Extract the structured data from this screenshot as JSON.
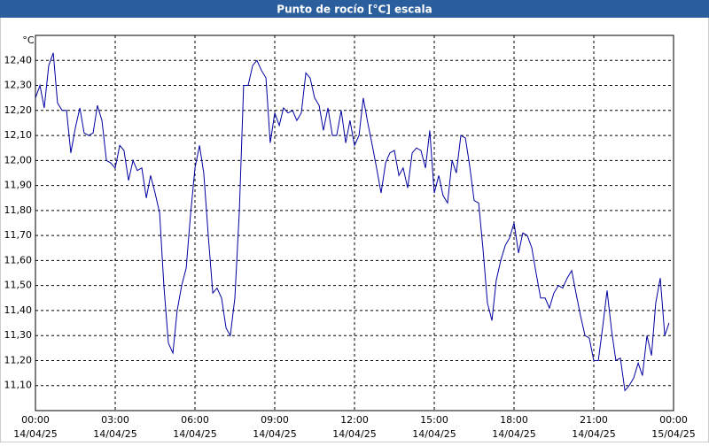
{
  "chart_data": {
    "type": "line",
    "title": "Punto de rocío [°C] escala",
    "y_unit": "°C",
    "x": [
      0,
      0.17,
      0.33,
      0.5,
      0.67,
      0.83,
      1,
      1.17,
      1.33,
      1.5,
      1.67,
      1.83,
      2,
      2.17,
      2.33,
      2.5,
      2.67,
      2.83,
      3,
      3.17,
      3.33,
      3.5,
      3.67,
      3.83,
      4,
      4.17,
      4.33,
      4.5,
      4.67,
      4.83,
      5,
      5.17,
      5.33,
      5.5,
      5.67,
      5.83,
      6,
      6.17,
      6.33,
      6.5,
      6.67,
      6.83,
      7,
      7.17,
      7.33,
      7.5,
      7.67,
      7.83,
      8,
      8.17,
      8.33,
      8.5,
      8.67,
      8.83,
      9,
      9.17,
      9.33,
      9.5,
      9.67,
      9.83,
      10,
      10.17,
      10.33,
      10.5,
      10.67,
      10.83,
      11,
      11.17,
      11.33,
      11.5,
      11.67,
      11.83,
      12,
      12.17,
      12.33,
      12.5,
      12.67,
      12.83,
      13,
      13.17,
      13.33,
      13.5,
      13.67,
      13.83,
      14,
      14.17,
      14.33,
      14.5,
      14.67,
      14.83,
      15,
      15.17,
      15.33,
      15.5,
      15.67,
      15.83,
      16,
      16.17,
      16.33,
      16.5,
      16.67,
      16.83,
      17,
      17.17,
      17.33,
      17.5,
      17.67,
      17.83,
      18,
      18.17,
      18.33,
      18.5,
      18.67,
      18.83,
      19,
      19.17,
      19.33,
      19.5,
      19.67,
      19.83,
      20,
      20.17,
      20.33,
      20.5,
      20.67,
      20.83,
      21,
      21.17,
      21.33,
      21.5,
      21.67,
      21.83,
      22,
      22.17,
      22.33,
      22.5,
      22.67,
      22.83,
      23,
      23.17,
      23.33,
      23.5,
      23.67,
      23.83
    ],
    "series": [
      {
        "color": "#0000a0",
        "values": [
          12.25,
          12.3,
          12.21,
          12.38,
          12.43,
          12.23,
          12.2,
          12.2,
          12.03,
          12.13,
          12.21,
          12.11,
          12.1,
          12.11,
          12.22,
          12.16,
          12.0,
          11.99,
          11.97,
          12.06,
          12.04,
          11.92,
          12.0,
          11.96,
          11.97,
          11.85,
          11.94,
          11.87,
          11.79,
          11.5,
          11.27,
          11.23,
          11.4,
          11.5,
          11.57,
          11.78,
          11.97,
          12.06,
          11.95,
          11.7,
          11.47,
          11.49,
          11.45,
          11.33,
          11.3,
          11.45,
          11.8,
          12.3,
          12.3,
          12.38,
          12.4,
          12.36,
          12.33,
          12.07,
          12.19,
          12.14,
          12.21,
          12.19,
          12.2,
          12.16,
          12.19,
          12.35,
          12.33,
          12.25,
          12.22,
          12.12,
          12.21,
          12.1,
          12.1,
          12.2,
          12.07,
          12.16,
          12.06,
          12.1,
          12.25,
          12.15,
          12.06,
          11.97,
          11.87,
          11.99,
          12.03,
          12.04,
          11.94,
          11.97,
          11.89,
          12.03,
          12.05,
          12.04,
          11.97,
          12.12,
          11.87,
          11.94,
          11.86,
          11.83,
          12.0,
          11.95,
          12.1,
          12.09,
          11.98,
          11.84,
          11.83,
          11.65,
          11.43,
          11.36,
          11.52,
          11.6,
          11.66,
          11.69,
          11.75,
          11.63,
          11.71,
          11.7,
          11.65,
          11.55,
          11.45,
          11.45,
          11.41,
          11.47,
          11.5,
          11.49,
          11.53,
          11.56,
          11.47,
          11.38,
          11.3,
          11.29,
          11.2,
          11.2,
          11.33,
          11.48,
          11.32,
          11.2,
          11.21,
          11.08,
          11.1,
          11.13,
          11.19,
          11.14,
          11.3,
          11.22,
          11.43,
          11.53,
          11.3,
          11.35
        ]
      }
    ],
    "xlim": [
      0,
      24
    ],
    "xticks": [
      {
        "value": 0,
        "label": "00:00",
        "date": "14/04/25"
      },
      {
        "value": 3,
        "label": "03:00",
        "date": "14/04/25"
      },
      {
        "value": 6,
        "label": "06:00",
        "date": "14/04/25"
      },
      {
        "value": 9,
        "label": "09:00",
        "date": "14/04/25"
      },
      {
        "value": 12,
        "label": "12:00",
        "date": "14/04/25"
      },
      {
        "value": 15,
        "label": "15:00",
        "date": "14/04/25"
      },
      {
        "value": 18,
        "label": "18:00",
        "date": "14/04/25"
      },
      {
        "value": 21,
        "label": "21:00",
        "date": "14/04/25"
      },
      {
        "value": 24,
        "label": "00:00",
        "date": "15/04/25"
      }
    ],
    "ylim": [
      11.0,
      12.5
    ],
    "yticks": [
      {
        "value": 11.1,
        "label": "11,10"
      },
      {
        "value": 11.2,
        "label": "11,20"
      },
      {
        "value": 11.3,
        "label": "11,30"
      },
      {
        "value": 11.4,
        "label": "11,40"
      },
      {
        "value": 11.5,
        "label": "11,50"
      },
      {
        "value": 11.6,
        "label": "11,60"
      },
      {
        "value": 11.7,
        "label": "11,70"
      },
      {
        "value": 11.8,
        "label": "11,80"
      },
      {
        "value": 11.9,
        "label": "11,90"
      },
      {
        "value": 12.0,
        "label": "12,00"
      },
      {
        "value": 12.1,
        "label": "12,10"
      },
      {
        "value": 12.2,
        "label": "12,20"
      },
      {
        "value": 12.3,
        "label": "12,30"
      },
      {
        "value": 12.4,
        "label": "12,40"
      }
    ],
    "grid": true
  }
}
